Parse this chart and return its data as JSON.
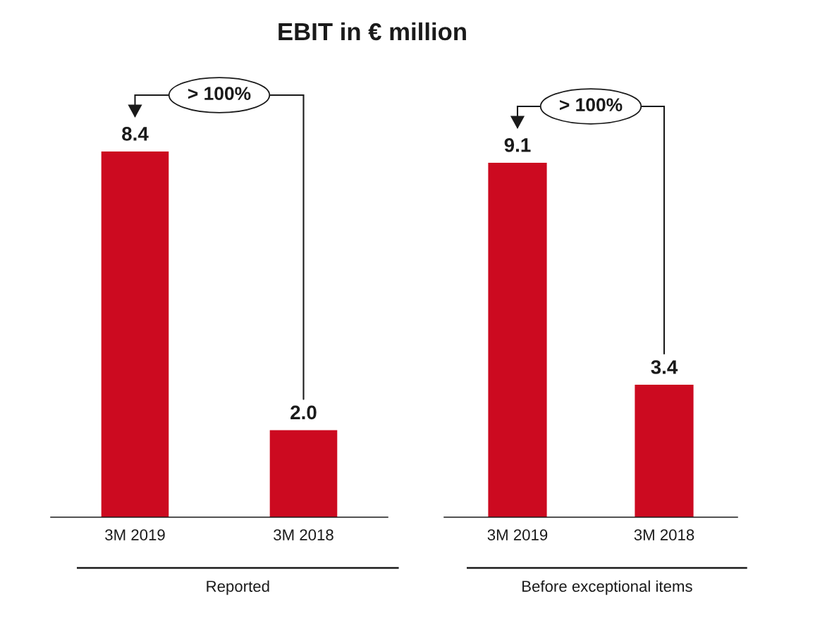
{
  "chart_data": [
    {
      "type": "bar",
      "title": "EBIT in € million",
      "xlabel": "Reported",
      "categories": [
        "3M 2019",
        "3M 2018"
      ],
      "values": [
        8.4,
        2.0
      ],
      "value_labels": [
        "8.4",
        "2.0"
      ],
      "color": "#cc0a20",
      "annotations": [
        "> 100%"
      ]
    },
    {
      "type": "bar",
      "xlabel": "Before exceptional items",
      "categories": [
        "3M 2019",
        "3M 2018"
      ],
      "values": [
        9.1,
        3.4
      ],
      "value_labels": [
        "9.1",
        "3.4"
      ],
      "color": "#cc0a20",
      "annotations": [
        "> 100%"
      ]
    }
  ]
}
